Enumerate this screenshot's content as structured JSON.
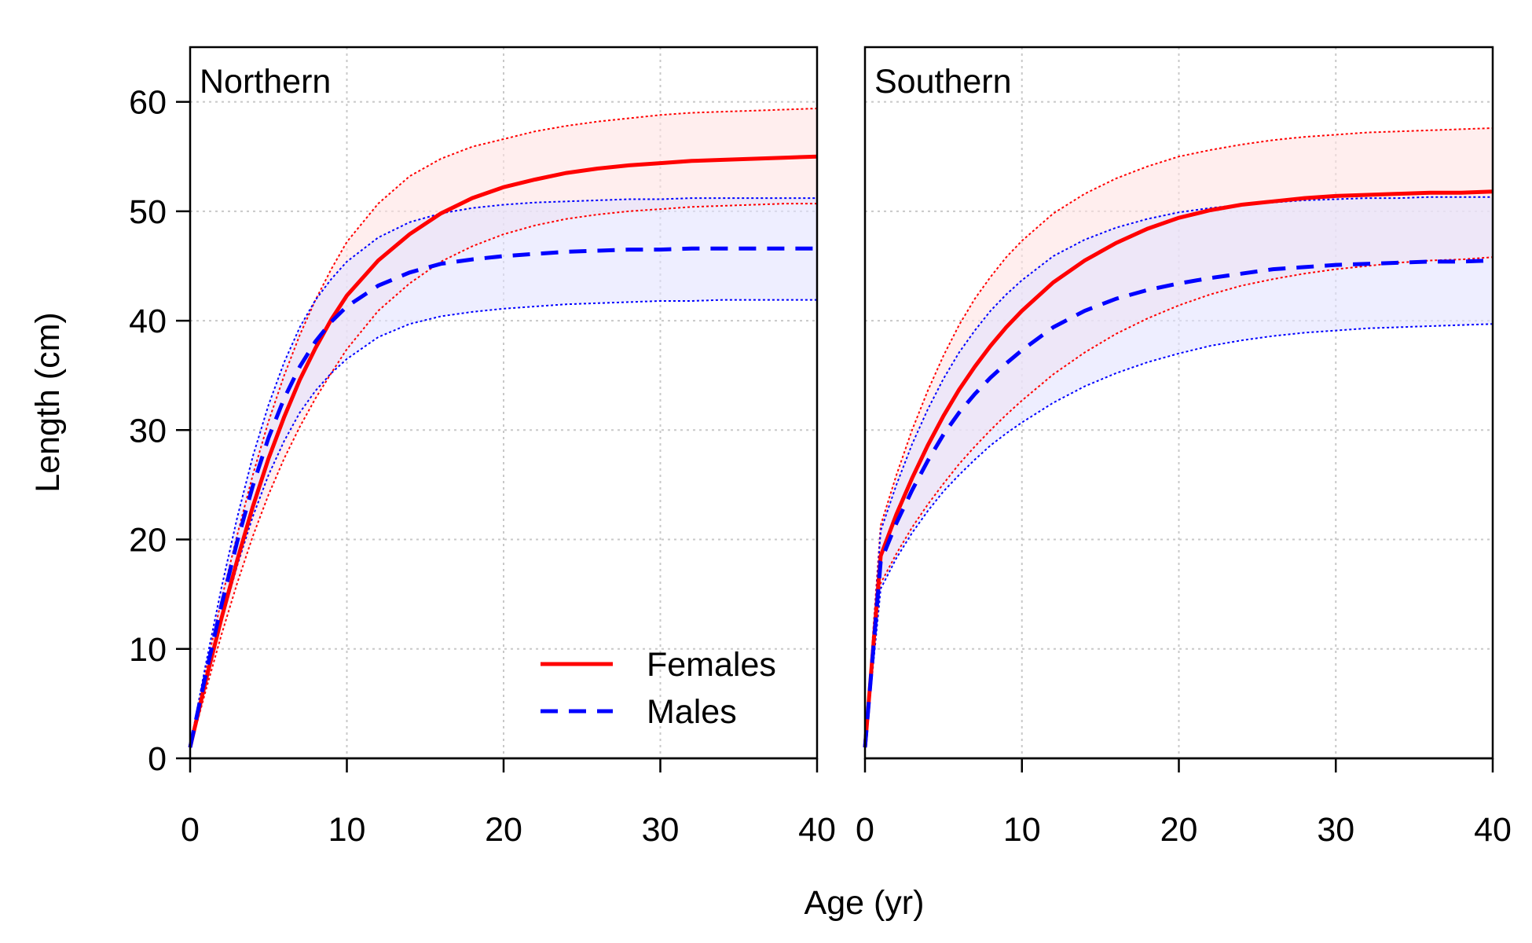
{
  "chart_data": {
    "type": "line",
    "xlabel": "Age (yr)",
    "ylabel": "Length (cm)",
    "xlim": [
      0,
      40
    ],
    "ylim": [
      0,
      65
    ],
    "x_ticks": [
      0,
      10,
      20,
      30,
      40
    ],
    "y_ticks": [
      0,
      10,
      20,
      30,
      40,
      50,
      60
    ],
    "grid": true,
    "legend": {
      "placement": "bottom-right of first panel",
      "entries": [
        {
          "label": "Females",
          "color": "#ff0000",
          "style": "solid"
        },
        {
          "label": "Males",
          "color": "#0000ff",
          "style": "dashed"
        }
      ]
    },
    "x": [
      0,
      1,
      2,
      3,
      4,
      5,
      6,
      7,
      8,
      9,
      10,
      12,
      14,
      16,
      18,
      20,
      22,
      24,
      26,
      28,
      30,
      32,
      34,
      36,
      38,
      40
    ],
    "panels": [
      {
        "label": "Northern",
        "series": [
          {
            "name": "Females",
            "color": "#ff0000",
            "fill": "#ffe3e3",
            "mean": [
              1.0,
              7.1,
              12.8,
              18.1,
              23.0,
              27.4,
              31.2,
              34.6,
              37.5,
              40.1,
              42.3,
              45.5,
              47.9,
              49.8,
              51.2,
              52.2,
              52.9,
              53.5,
              53.9,
              54.2,
              54.4,
              54.6,
              54.7,
              54.8,
              54.9,
              55.0
            ],
            "lower": [
              0.9,
              6.2,
              11.3,
              16.0,
              20.3,
              24.1,
              27.4,
              30.3,
              32.9,
              35.2,
              37.4,
              40.9,
              43.4,
              45.4,
              46.8,
              47.9,
              48.7,
              49.3,
              49.7,
              50.0,
              50.2,
              50.4,
              50.5,
              50.6,
              50.7,
              50.7
            ],
            "upper": [
              1.1,
              8.1,
              14.5,
              20.4,
              25.9,
              30.8,
              35.0,
              38.7,
              41.9,
              44.7,
              47.2,
              50.7,
              53.2,
              54.8,
              55.9,
              56.6,
              57.3,
              57.8,
              58.2,
              58.5,
              58.8,
              59.0,
              59.1,
              59.2,
              59.3,
              59.4
            ]
          },
          {
            "name": "Males",
            "color": "#0000ff",
            "fill": "#e3e3ff",
            "mean": [
              1.0,
              7.7,
              14.0,
              19.8,
              24.9,
              29.3,
              32.9,
              35.8,
              38.1,
              39.9,
              41.3,
              43.2,
              44.4,
              45.2,
              45.6,
              45.9,
              46.1,
              46.3,
              46.4,
              46.5,
              46.5,
              46.6,
              46.6,
              46.6,
              46.6,
              46.6
            ],
            "lower": [
              0.9,
              6.8,
              12.5,
              17.6,
              22.1,
              25.9,
              29.0,
              31.6,
              33.6,
              35.2,
              36.5,
              38.5,
              39.7,
              40.4,
              40.8,
              41.1,
              41.3,
              41.5,
              41.6,
              41.7,
              41.8,
              41.8,
              41.9,
              41.9,
              41.9,
              41.9
            ],
            "upper": [
              1.1,
              8.6,
              15.6,
              22.0,
              27.6,
              32.3,
              36.2,
              39.4,
              41.9,
              43.8,
              45.4,
              47.6,
              49.0,
              49.8,
              50.3,
              50.6,
              50.8,
              50.9,
              51.0,
              51.1,
              51.1,
              51.2,
              51.2,
              51.2,
              51.2,
              51.2
            ]
          }
        ]
      },
      {
        "label": "Southern",
        "series": [
          {
            "name": "Females",
            "color": "#ff0000",
            "fill": "#ffe3e3",
            "mean": [
              1.0,
              18.5,
              22.3,
              25.6,
              28.6,
              31.3,
              33.7,
              35.8,
              37.7,
              39.4,
              40.9,
              43.5,
              45.5,
              47.1,
              48.4,
              49.4,
              50.1,
              50.6,
              50.9,
              51.2,
              51.4,
              51.5,
              51.6,
              51.7,
              51.7,
              51.8
            ],
            "lower": [
              0.9,
              16.0,
              18.7,
              21.1,
              23.2,
              25.1,
              26.9,
              28.5,
              30.0,
              31.4,
              32.7,
              35.1,
              37.1,
              38.8,
              40.2,
              41.4,
              42.4,
              43.2,
              43.8,
              44.3,
              44.7,
              45.0,
              45.3,
              45.5,
              45.6,
              45.8
            ],
            "upper": [
              1.1,
              21.3,
              25.9,
              30.0,
              33.6,
              36.8,
              39.6,
              42.0,
              44.0,
              45.8,
              47.3,
              49.8,
              51.6,
              53.0,
              54.1,
              55.0,
              55.6,
              56.1,
              56.5,
              56.8,
              57.0,
              57.2,
              57.3,
              57.4,
              57.5,
              57.6
            ]
          },
          {
            "name": "Males",
            "color": "#0000ff",
            "fill": "#e3e3ff",
            "mean": [
              1.0,
              18.0,
              21.5,
              24.5,
              27.2,
              29.6,
              31.6,
              33.3,
              34.8,
              36.1,
              37.3,
              39.4,
              40.9,
              42.0,
              42.8,
              43.4,
              43.9,
              44.3,
              44.7,
              44.9,
              45.1,
              45.2,
              45.3,
              45.4,
              45.4,
              45.5
            ],
            "lower": [
              0.9,
              15.5,
              18.3,
              20.6,
              22.6,
              24.4,
              25.9,
              27.3,
              28.6,
              29.7,
              30.7,
              32.5,
              34.0,
              35.2,
              36.2,
              37.0,
              37.7,
              38.2,
              38.6,
              38.9,
              39.1,
              39.3,
              39.4,
              39.5,
              39.6,
              39.7
            ],
            "upper": [
              1.1,
              20.8,
              25.0,
              28.7,
              31.9,
              34.7,
              37.1,
              39.1,
              40.9,
              42.4,
              43.7,
              45.9,
              47.4,
              48.5,
              49.3,
              49.9,
              50.3,
              50.6,
              50.8,
              51.0,
              51.1,
              51.2,
              51.2,
              51.3,
              51.3,
              51.3
            ]
          }
        ]
      }
    ]
  }
}
